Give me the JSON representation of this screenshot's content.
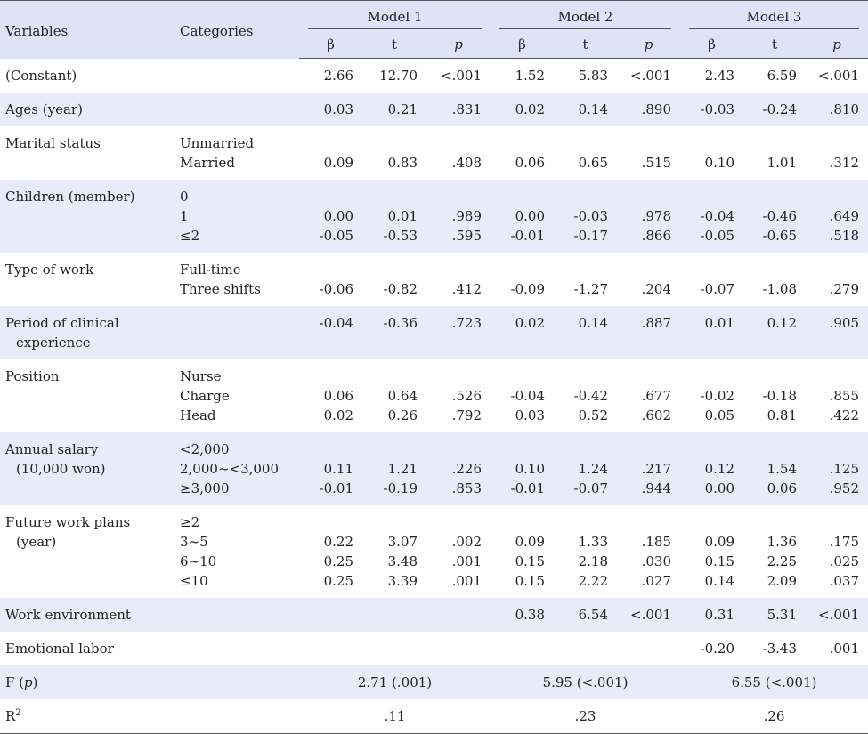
{
  "header": {
    "variables": "Variables",
    "categories": "Categories",
    "models": [
      "Model 1",
      "Model 2",
      "Model 3"
    ],
    "beta": "β",
    "t": "t",
    "p": "p"
  },
  "rows": [
    {
      "var": [
        "(Constant)"
      ],
      "cats": [
        ""
      ],
      "m1": [
        [
          "2.66",
          "12.70",
          "<.001"
        ]
      ],
      "m2": [
        [
          "1.52",
          "5.83",
          "<.001"
        ]
      ],
      "m3": [
        [
          "2.43",
          "6.59",
          "<.001"
        ]
      ],
      "offset": 0
    },
    {
      "var": [
        "Ages (year)"
      ],
      "cats": [
        ""
      ],
      "m1": [
        [
          "0.03",
          "0.21",
          ".831"
        ]
      ],
      "m2": [
        [
          "0.02",
          "0.14",
          ".890"
        ]
      ],
      "m3": [
        [
          "-0.03",
          "-0.24",
          ".810"
        ]
      ],
      "offset": 0
    },
    {
      "var": [
        "Marital status"
      ],
      "cats": [
        "Unmarried",
        "Married"
      ],
      "m1": [
        [
          "0.09",
          "0.83",
          ".408"
        ]
      ],
      "m2": [
        [
          "0.06",
          "0.65",
          ".515"
        ]
      ],
      "m3": [
        [
          "0.10",
          "1.01",
          ".312"
        ]
      ],
      "offset": 1
    },
    {
      "var": [
        "Children (member)"
      ],
      "cats": [
        "0",
        "1",
        "≤2"
      ],
      "m1": [
        [
          "0.00",
          "0.01",
          ".989"
        ],
        [
          "-0.05",
          "-0.53",
          ".595"
        ]
      ],
      "m2": [
        [
          "0.00",
          "-0.03",
          ".978"
        ],
        [
          "-0.01",
          "-0.17",
          ".866"
        ]
      ],
      "m3": [
        [
          "-0.04",
          "-0.46",
          ".649"
        ],
        [
          "-0.05",
          "-0.65",
          ".518"
        ]
      ],
      "offset": 1
    },
    {
      "var": [
        "Type of work"
      ],
      "cats": [
        "Full-time",
        "Three shifts"
      ],
      "m1": [
        [
          "-0.06",
          "-0.82",
          ".412"
        ]
      ],
      "m2": [
        [
          "-0.09",
          "-1.27",
          ".204"
        ]
      ],
      "m3": [
        [
          "-0.07",
          "-1.08",
          ".279"
        ]
      ],
      "offset": 1
    },
    {
      "var": [
        "Period of clinical",
        "experience"
      ],
      "cats": [
        ""
      ],
      "m1": [
        [
          "-0.04",
          "-0.36",
          ".723"
        ]
      ],
      "m2": [
        [
          "0.02",
          "0.14",
          ".887"
        ]
      ],
      "m3": [
        [
          "0.01",
          "0.12",
          ".905"
        ]
      ],
      "offset": 0
    },
    {
      "var": [
        "Position"
      ],
      "cats": [
        "Nurse",
        "Charge",
        "Head"
      ],
      "m1": [
        [
          "0.06",
          "0.64",
          ".526"
        ],
        [
          "0.02",
          "0.26",
          ".792"
        ]
      ],
      "m2": [
        [
          "-0.04",
          "-0.42",
          ".677"
        ],
        [
          "0.03",
          "0.52",
          ".602"
        ]
      ],
      "m3": [
        [
          "-0.02",
          "-0.18",
          ".855"
        ],
        [
          "0.05",
          "0.81",
          ".422"
        ]
      ],
      "offset": 1
    },
    {
      "var": [
        "Annual salary",
        "(10,000 won)"
      ],
      "cats": [
        "<2,000",
        "2,000~<3,000",
        "≥3,000"
      ],
      "m1": [
        [
          "0.11",
          "1.21",
          ".226"
        ],
        [
          "-0.01",
          "-0.19",
          ".853"
        ]
      ],
      "m2": [
        [
          "0.10",
          "1.24",
          ".217"
        ],
        [
          "-0.01",
          "-0.07",
          ".944"
        ]
      ],
      "m3": [
        [
          "0.12",
          "1.54",
          ".125"
        ],
        [
          "0.00",
          "0.06",
          ".952"
        ]
      ],
      "offset": 1
    },
    {
      "var": [
        "Future work plans",
        "(year)"
      ],
      "cats": [
        "≥2",
        "3~5",
        "6~10",
        "≤10"
      ],
      "m1": [
        [
          "0.22",
          "3.07",
          ".002"
        ],
        [
          "0.25",
          "3.48",
          ".001"
        ],
        [
          "0.25",
          "3.39",
          ".001"
        ]
      ],
      "m2": [
        [
          "0.09",
          "1.33",
          ".185"
        ],
        [
          "0.15",
          "2.18",
          ".030"
        ],
        [
          "0.15",
          "2.22",
          ".027"
        ]
      ],
      "m3": [
        [
          "0.09",
          "1.36",
          ".175"
        ],
        [
          "0.15",
          "2.25",
          ".025"
        ],
        [
          "0.14",
          "2.09",
          ".037"
        ]
      ],
      "offset": 1
    },
    {
      "var": [
        "Work environment"
      ],
      "cats": [
        ""
      ],
      "m1": [
        [
          "",
          "",
          ""
        ]
      ],
      "m2": [
        [
          "0.38",
          "6.54",
          "<.001"
        ]
      ],
      "m3": [
        [
          "0.31",
          "5.31",
          "<.001"
        ]
      ],
      "offset": 0
    },
    {
      "var": [
        "Emotional labor"
      ],
      "cats": [
        ""
      ],
      "m1": [
        [
          "",
          "",
          ""
        ]
      ],
      "m2": [
        [
          "",
          "",
          ""
        ]
      ],
      "m3": [
        [
          "-0.20",
          "-3.43",
          ".001"
        ]
      ],
      "offset": 0
    }
  ],
  "summary": {
    "f_label": "F (p)",
    "f_values": [
      "2.71 (.001)",
      "5.95 (<.001)",
      "6.55 (<.001)"
    ],
    "r2_label": "R",
    "r2_sup": "2",
    "r2_values": [
      ".11",
      ".23",
      ".26"
    ]
  }
}
